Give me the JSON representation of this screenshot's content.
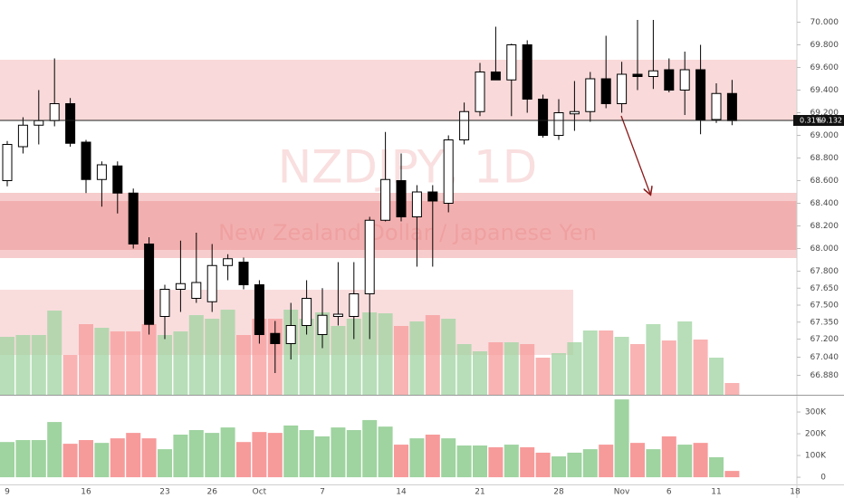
{
  "chart_data": {
    "type": "candlestick",
    "title": "NZDJPY, 1D",
    "subtitle": "New Zealand Dollar / Japanese Yen",
    "categories": [
      "9",
      null,
      null,
      null,
      null,
      "16",
      null,
      null,
      null,
      null,
      "23",
      null,
      null,
      "26",
      null,
      null,
      "Oct",
      null,
      null,
      null,
      "7",
      null,
      null,
      null,
      null,
      "14",
      null,
      null,
      null,
      null,
      "21",
      null,
      null,
      null,
      null,
      "28",
      null,
      null,
      null,
      "Nov",
      null,
      null,
      "6",
      null,
      null,
      "11",
      null,
      null,
      null,
      null,
      "18"
    ],
    "open": [
      68.6,
      68.9,
      69.09,
      69.13,
      69.28,
      68.94,
      68.61,
      68.73,
      68.49,
      68.04,
      67.4,
      67.64,
      67.56,
      67.53,
      67.85,
      67.88,
      67.68,
      67.25,
      67.16,
      67.32,
      67.24,
      67.4,
      67.4,
      67.6,
      68.25,
      68.6,
      68.28,
      68.5,
      68.4,
      68.96,
      69.21,
      69.56,
      69.49,
      69.8,
      69.32,
      69.0,
      69.19,
      69.21,
      69.5,
      69.28,
      69.54,
      69.52,
      69.58,
      69.4,
      69.58,
      69.14,
      69.37,
      null,
      null,
      null,
      null
    ],
    "high": [
      68.95,
      69.16,
      69.4,
      69.68,
      69.33,
      68.96,
      68.77,
      68.77,
      68.53,
      68.1,
      67.68,
      68.07,
      68.14,
      68.04,
      67.95,
      67.92,
      67.72,
      67.36,
      67.52,
      67.72,
      67.65,
      67.88,
      67.88,
      68.28,
      69.03,
      68.84,
      68.56,
      68.56,
      69.0,
      69.29,
      69.64,
      69.96,
      69.81,
      69.84,
      69.36,
      69.32,
      69.48,
      69.56,
      69.88,
      69.65,
      70.02,
      70.02,
      69.68,
      69.74,
      69.8,
      69.46,
      69.49,
      null,
      null,
      null,
      null
    ],
    "low": [
      68.55,
      68.84,
      68.92,
      69.08,
      68.9,
      68.49,
      68.37,
      68.31,
      68.0,
      67.24,
      67.2,
      67.44,
      67.52,
      67.44,
      67.72,
      67.64,
      67.16,
      66.9,
      67.02,
      67.24,
      67.12,
      67.32,
      67.2,
      67.2,
      68.24,
      68.24,
      67.84,
      67.84,
      68.32,
      68.92,
      69.17,
      69.49,
      69.17,
      69.2,
      68.98,
      68.96,
      69.04,
      69.12,
      69.24,
      69.2,
      69.4,
      69.41,
      69.38,
      69.18,
      69.01,
      69.11,
      69.09,
      null,
      null,
      null,
      null
    ],
    "close": [
      68.92,
      69.09,
      69.13,
      69.28,
      68.93,
      68.61,
      68.74,
      68.49,
      68.04,
      67.33,
      67.64,
      67.69,
      67.7,
      67.85,
      67.91,
      67.68,
      67.24,
      67.16,
      67.32,
      67.56,
      67.41,
      67.42,
      67.6,
      68.25,
      68.61,
      68.28,
      68.5,
      68.42,
      68.96,
      69.21,
      69.56,
      69.49,
      69.8,
      69.32,
      69.0,
      69.2,
      69.21,
      69.5,
      69.28,
      69.54,
      69.52,
      69.57,
      69.4,
      69.58,
      69.14,
      69.37,
      69.13,
      null,
      null,
      null,
      null
    ],
    "up_color": "#ffffff",
    "down_color": "#000000",
    "ylim": [
      66.708,
      70.196
    ],
    "yticks": [
      {
        "value": 66.88,
        "label": "66.880"
      },
      {
        "value": 67.04,
        "label": "67.040"
      },
      {
        "value": 67.2,
        "label": "67.200"
      },
      {
        "value": 67.35,
        "label": "67.350"
      },
      {
        "value": 67.5,
        "label": "67.500"
      },
      {
        "value": 67.65,
        "label": "67.650"
      },
      {
        "value": 67.8,
        "label": "67.800"
      },
      {
        "value": 68,
        "label": "68.000"
      },
      {
        "value": 68.2,
        "label": "68.200"
      },
      {
        "value": 68.4,
        "label": "68.400"
      },
      {
        "value": 68.6,
        "label": "68.600"
      },
      {
        "value": 68.8,
        "label": "68.800"
      },
      {
        "value": 69,
        "label": "69.000"
      },
      {
        "value": 69.2,
        "label": "69.200"
      },
      {
        "value": 69.4,
        "label": "69.400"
      },
      {
        "value": 69.6,
        "label": "69.600"
      },
      {
        "value": 69.8,
        "label": "69.800"
      },
      {
        "value": 70,
        "label": "70.000"
      }
    ],
    "last_price": 69.132,
    "last_change": {
      "value": 0.31,
      "label": "0.31%"
    },
    "overlay_volume": [
      67.22,
      67.236,
      67.236,
      67.452,
      67.06,
      67.332,
      67.3,
      67.268,
      67.268,
      67.332,
      67.236,
      67.268,
      67.412,
      67.38,
      67.46,
      67.236,
      67.38,
      67.38,
      67.46,
      67.38,
      67.436,
      67.316,
      67.38,
      67.436,
      67.428,
      67.316,
      67.356,
      67.412,
      67.38,
      67.156,
      67.092,
      67.172,
      67.172,
      67.156,
      67.036,
      67.076,
      67.172,
      67.276,
      67.276,
      67.22,
      67.156,
      67.332,
      67.188,
      67.356,
      67.196,
      67.036,
      66.812,
      null,
      null,
      null,
      null
    ],
    "volume": [
      162000,
      171000,
      171000,
      254000,
      154000,
      171000,
      158000,
      179000,
      204000,
      179000,
      129000,
      196000,
      217000,
      204000,
      229000,
      162000,
      208000,
      204000,
      238000,
      217000,
      188000,
      229000,
      217000,
      263000,
      233000,
      150000,
      179000,
      196000,
      179000,
      146000,
      146000,
      138000,
      150000,
      138000,
      113000,
      96000,
      113000,
      129000,
      150000,
      358000,
      158000,
      129000,
      188000,
      150000,
      158000,
      92000,
      29000,
      null,
      null,
      null,
      null
    ],
    "volume_up_color": "#9fd3a0",
    "volume_down_color": "#f79a9a",
    "volume_ylim": [
      -33000,
      371000
    ],
    "volume_yticks": [
      0,
      {
        "value": 100000,
        "label": "100K"
      },
      {
        "value": 200000,
        "label": "200K"
      },
      {
        "value": 300000,
        "label": "300K"
      }
    ]
  }
}
